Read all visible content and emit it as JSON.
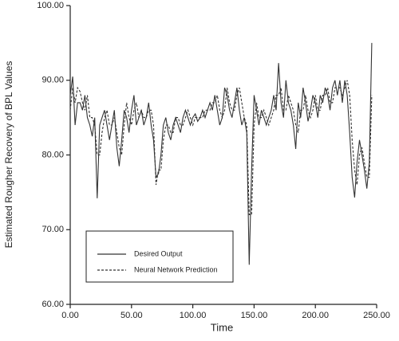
{
  "chart_data": {
    "type": "line",
    "xlabel": "Time",
    "ylabel": "Estimated Rougher Recovery of BPL Values",
    "x": [
      0,
      2,
      4,
      6,
      8,
      10,
      12,
      14,
      16,
      18,
      20,
      22,
      24,
      26,
      28,
      30,
      32,
      34,
      36,
      38,
      40,
      42,
      44,
      46,
      48,
      50,
      52,
      54,
      56,
      58,
      60,
      62,
      64,
      66,
      68,
      70,
      72,
      74,
      76,
      78,
      80,
      82,
      84,
      86,
      88,
      90,
      92,
      94,
      96,
      98,
      100,
      102,
      104,
      106,
      108,
      110,
      112,
      114,
      116,
      118,
      120,
      122,
      124,
      126,
      128,
      130,
      132,
      134,
      136,
      138,
      140,
      142,
      144,
      146,
      148,
      150,
      152,
      154,
      156,
      158,
      160,
      162,
      164,
      166,
      168,
      170,
      172,
      174,
      176,
      178,
      180,
      182,
      184,
      186,
      188,
      190,
      192,
      194,
      196,
      198,
      200,
      202,
      204,
      206,
      208,
      210,
      212,
      214,
      216,
      218,
      220,
      222,
      224,
      226,
      228,
      230,
      232,
      234,
      236,
      238,
      240,
      242,
      244,
      246
    ],
    "series": [
      {
        "name": "Desired Output",
        "color": "#333333",
        "dash": false,
        "values": [
          88,
          90.5,
          84,
          87,
          87,
          86,
          88,
          85,
          84,
          82.5,
          85,
          74.2,
          84,
          85,
          86,
          84,
          82,
          84,
          86,
          81,
          78.5,
          82,
          86,
          85,
          83,
          86,
          88,
          84,
          85,
          86,
          84,
          85,
          87,
          84,
          82,
          77,
          77.5,
          80,
          84,
          85,
          83,
          82,
          84,
          85,
          84,
          83,
          85,
          86,
          85,
          84,
          85,
          85.5,
          84.5,
          85,
          86,
          85,
          86,
          87,
          86,
          88,
          86,
          84,
          85,
          89,
          88,
          86,
          85,
          87,
          89,
          86,
          84,
          85,
          83,
          65.3,
          78,
          88,
          86,
          84,
          86,
          85,
          84,
          85,
          86,
          88,
          86,
          92.3,
          87,
          85,
          90,
          87,
          86,
          84,
          80.8,
          87,
          85,
          89,
          87,
          84.5,
          86,
          88,
          87,
          85,
          88,
          87,
          89,
          88,
          86,
          89,
          90,
          88,
          90,
          87,
          90,
          88,
          83,
          77,
          74.3,
          79,
          82,
          80,
          78,
          75.5,
          79,
          95
        ]
      },
      {
        "name": "Neural Network Prediction",
        "color": "#333333",
        "dash": true,
        "values": [
          86,
          89,
          87,
          89,
          88.5,
          87,
          86,
          88,
          85,
          85,
          84,
          80,
          80,
          83,
          85,
          86,
          84,
          84,
          85,
          83,
          81,
          80,
          84,
          87,
          85,
          84,
          86,
          87,
          85,
          86,
          85,
          85,
          86,
          86,
          84,
          76,
          78,
          78,
          82,
          84,
          84,
          83,
          83,
          85,
          85,
          84,
          84,
          85,
          86,
          85,
          84,
          85,
          85,
          85,
          85,
          86,
          86,
          86,
          87,
          87,
          88,
          86,
          85,
          86,
          89,
          87,
          86,
          86,
          88,
          89,
          87,
          85,
          84,
          72,
          72,
          84,
          87,
          85,
          85,
          86,
          85,
          84,
          85,
          86,
          88,
          88,
          89,
          86,
          86,
          88,
          87,
          86,
          84,
          83,
          86,
          86,
          88,
          86,
          85,
          86,
          88,
          86,
          86,
          88,
          88,
          89,
          87,
          87,
          89,
          89,
          89,
          88,
          89,
          90,
          88,
          82,
          78,
          76,
          80,
          81,
          79,
          77,
          77,
          88
        ]
      }
    ],
    "xlim": [
      0,
      250
    ],
    "ylim": [
      60,
      100
    ],
    "xticks": [
      {
        "value": 0,
        "label": "0.00"
      },
      {
        "value": 50,
        "label": "50.00"
      },
      {
        "value": 100,
        "label": "100.00"
      },
      {
        "value": 150,
        "label": "150.00"
      },
      {
        "value": 200,
        "label": "200.00"
      },
      {
        "value": 250,
        "label": "250.00"
      }
    ],
    "yticks": [
      {
        "value": 60,
        "label": "60.00"
      },
      {
        "value": 70,
        "label": "70.00"
      },
      {
        "value": 80,
        "label": "80.00"
      },
      {
        "value": 90,
        "label": "90.00"
      },
      {
        "value": 100,
        "label": "100.00"
      }
    ],
    "grid": false
  }
}
